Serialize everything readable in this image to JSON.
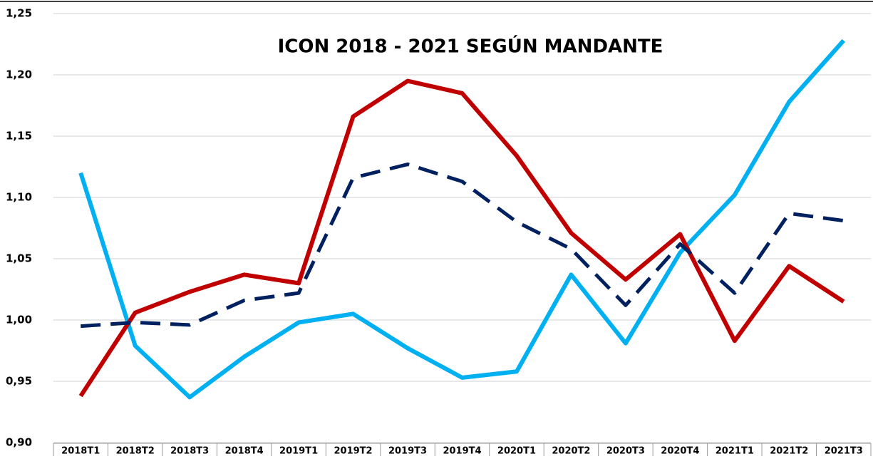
{
  "chart_data": {
    "type": "line",
    "title": "ICON 2018 - 2021  SEGÚN MANDANTE",
    "categories": [
      "2018T1",
      "2018T2",
      "2018T3",
      "2018T4",
      "2019T1",
      "2019T2",
      "2019T3",
      "2019T4",
      "2020T1",
      "2020T2",
      "2020T3",
      "2020T4",
      "2021T1",
      "2021T2",
      "2021T3"
    ],
    "series": [
      {
        "color": "#00b0f0",
        "dash": false,
        "values": [
          1.12,
          0.979,
          0.937,
          0.97,
          0.998,
          1.005,
          0.977,
          0.953,
          0.958,
          1.037,
          0.981,
          1.055,
          1.102,
          1.178,
          1.228
        ]
      },
      {
        "color": "#c00000",
        "dash": false,
        "values": [
          0.938,
          1.006,
          1.023,
          1.037,
          1.03,
          1.166,
          1.195,
          1.185,
          1.134,
          1.071,
          1.033,
          1.07,
          0.983,
          1.044,
          1.015
        ]
      },
      {
        "color": "#002060",
        "dash": true,
        "values": [
          0.995,
          0.998,
          0.996,
          1.016,
          1.022,
          1.116,
          1.127,
          1.113,
          1.08,
          1.058,
          1.012,
          1.062,
          1.022,
          1.087,
          1.081
        ]
      }
    ],
    "ylim": [
      0.9,
      1.25
    ],
    "yticks": [
      {
        "value": 0.9,
        "label": "0,90"
      },
      {
        "value": 0.95,
        "label": "0,95"
      },
      {
        "value": 1.0,
        "label": "1,00"
      },
      {
        "value": 1.05,
        "label": "1,05"
      },
      {
        "value": 1.1,
        "label": "1,10"
      },
      {
        "value": 1.15,
        "label": "1,15"
      },
      {
        "value": 1.2,
        "label": "1,20"
      },
      {
        "value": 1.25,
        "label": "1,25"
      }
    ],
    "grid": true
  }
}
